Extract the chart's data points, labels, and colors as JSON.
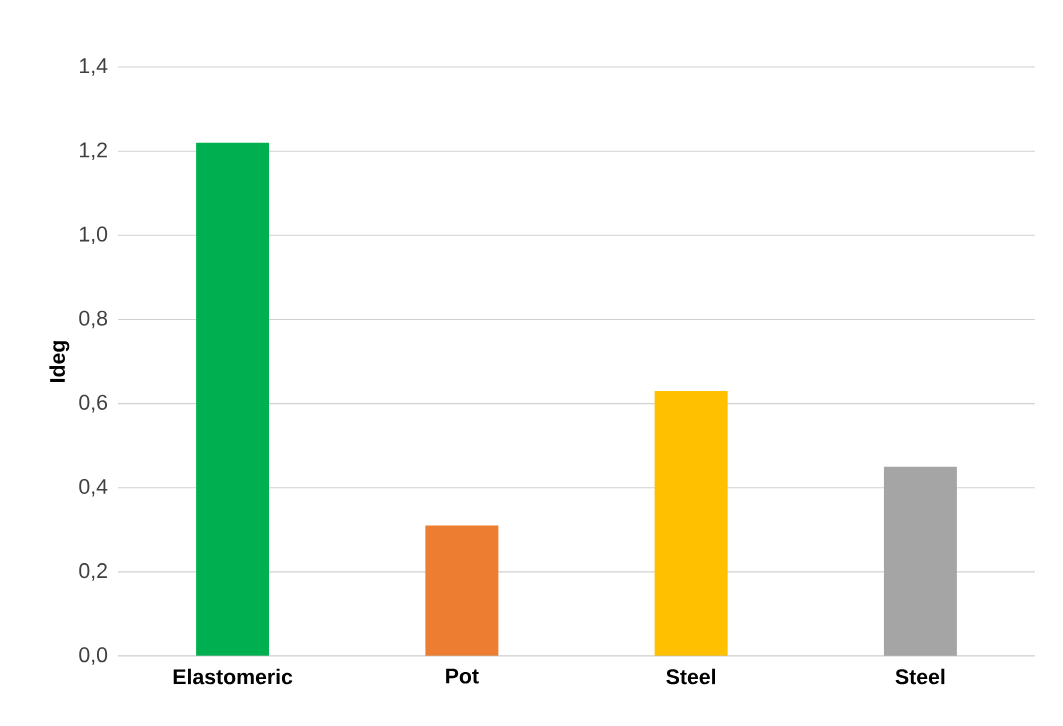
{
  "chart_data": {
    "type": "bar",
    "ylabel": "Ideg",
    "categories": [
      "Elastomeric",
      "Pot",
      "Steel",
      "Steel"
    ],
    "values": [
      1.22,
      0.31,
      0.63,
      0.45
    ],
    "colors": [
      "#00b050",
      "#ed7d31",
      "#ffc000",
      "#a5a5a5"
    ],
    "ylim": [
      0,
      1.4
    ],
    "yticks": [
      {
        "value": 0,
        "label": "0,0"
      },
      {
        "value": 0.2,
        "label": "0,2"
      },
      {
        "value": 0.4,
        "label": "0,4"
      },
      {
        "value": 0.6,
        "label": "0,6"
      },
      {
        "value": 0.8,
        "label": "0,8"
      },
      {
        "value": 1.0,
        "label": "1,0"
      },
      {
        "value": 1.2,
        "label": "1,2"
      },
      {
        "value": 1.4,
        "label": "1,4"
      }
    ],
    "grid": "y"
  }
}
